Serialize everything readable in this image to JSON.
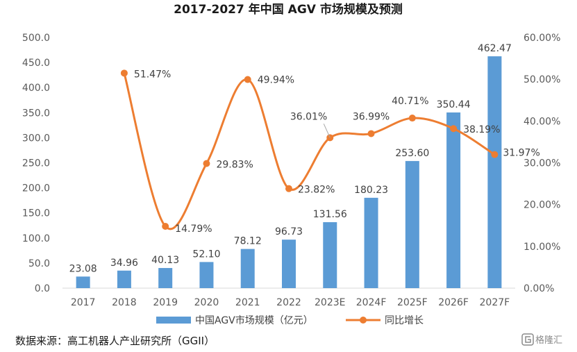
{
  "chart_data": {
    "type": "bar",
    "title": "2017-2027 年中国 AGV 市场规模及预测",
    "categories": [
      "2017",
      "2018",
      "2019",
      "2020",
      "2021",
      "2022",
      "2023E",
      "2024F",
      "2025F",
      "2026F",
      "2027F"
    ],
    "series": [
      {
        "name": "中国AGV市场规模（亿元）",
        "type": "bar",
        "axis": "left",
        "color": "#5b9bd5",
        "values": [
          23.08,
          34.96,
          40.13,
          52.1,
          78.12,
          96.73,
          131.56,
          180.23,
          253.6,
          350.44,
          462.47
        ],
        "labels": [
          "23.08",
          "34.96",
          "40.13",
          "52.10",
          "78.12",
          "96.73",
          "131.56",
          "180.23",
          "253.60",
          "350.44",
          "462.47"
        ]
      },
      {
        "name": "同比增长",
        "type": "line",
        "axis": "right",
        "smooth": true,
        "color": "#ed7d31",
        "values": [
          null,
          51.47,
          14.79,
          29.83,
          49.94,
          23.82,
          36.01,
          36.99,
          40.71,
          38.19,
          31.97
        ],
        "labels": [
          "",
          "51.47%",
          "14.79%",
          "29.83%",
          "49.94%",
          "23.82%",
          "36.01%",
          "36.99%",
          "40.71%",
          "38.19%",
          "31.97%"
        ]
      }
    ],
    "y_left": {
      "range": [
        0,
        500
      ],
      "ticks": [
        "0.0",
        "50.0",
        "100.0",
        "150.0",
        "200.0",
        "250.0",
        "300.0",
        "350.0",
        "400.0",
        "450.0",
        "500.0"
      ]
    },
    "y_right": {
      "range": [
        0,
        60
      ],
      "ticks": [
        "0.00%",
        "10.00%",
        "20.00%",
        "30.00%",
        "40.00%",
        "50.00%",
        "60.00%"
      ]
    },
    "grid": false,
    "legend_position": "bottom"
  },
  "source_note": "数据来源：高工机器人产业研究所（GGII）",
  "watermark": "格隆汇",
  "watermark_icon": "g-logo-icon"
}
